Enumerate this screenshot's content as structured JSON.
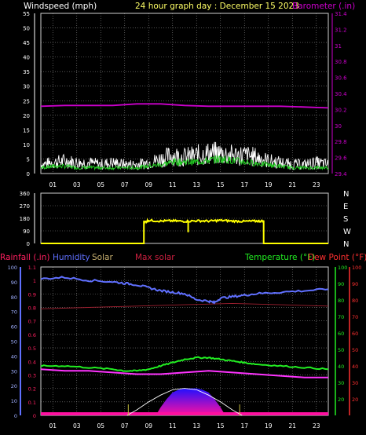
{
  "header": {
    "left_label": "Windspeed (mph)",
    "title": "24 hour graph day : December 15 2023",
    "right_label": "Barometer (.in)"
  },
  "footer_labels": {
    "rainfall": "Rainfall (.in)",
    "humidity": "Humidity",
    "solar": "Solar",
    "max_solar": "Max solar",
    "temperature": "Temperature (°F)",
    "dew_point": "Dew Point (°F)"
  },
  "colors": {
    "background": "#000000",
    "grid": "#8a8a8a",
    "text": "#ffffff",
    "wind": "#ffffff",
    "wind_avg": "#22cc22",
    "barometer": "#cc00cc",
    "direction": "#ffff00",
    "rain": "#ff2060",
    "humidity": "#6070ff",
    "solar": "#c8b070",
    "max_solar": "#cc2040",
    "temperature": "#22ee22",
    "dew_point": "#ff3030"
  },
  "chart_data": [
    {
      "type": "line",
      "name": "wind-barometer",
      "x_ticks": [
        "01",
        "03",
        "05",
        "07",
        "09",
        "11",
        "13",
        "15",
        "17",
        "19",
        "21",
        "23"
      ],
      "ylim_left": [
        0,
        55
      ],
      "y_ticks_left": [
        "0",
        "5",
        "10",
        "15",
        "20",
        "25",
        "30",
        "35",
        "40",
        "45",
        "50",
        "55"
      ],
      "ylim_right": [
        29.4,
        31.4
      ],
      "y_ticks_right": [
        "29.4",
        "29.6",
        "29.8",
        "30",
        "30.2",
        "30.4",
        "30.6",
        "30.8",
        "31",
        "31.2",
        "31.4"
      ],
      "grid": true,
      "series": [
        {
          "key": "barometer",
          "hours": [
            0,
            2,
            4,
            6,
            8,
            10,
            12,
            14,
            16,
            18,
            20,
            22,
            24
          ],
          "values": [
            30.24,
            30.25,
            30.25,
            30.25,
            30.27,
            30.27,
            30.25,
            30.24,
            30.24,
            30.24,
            30.24,
            30.23,
            30.22
          ]
        },
        {
          "key": "wind_gust",
          "hours": [
            0,
            1,
            2,
            3,
            4,
            5,
            6,
            7,
            8,
            9,
            10,
            11,
            12,
            13,
            14,
            15,
            16,
            17,
            18,
            19,
            20,
            21,
            22,
            23,
            24
          ],
          "values": [
            5,
            6,
            7,
            6,
            6,
            5,
            6,
            5,
            5,
            6,
            8,
            10,
            9,
            10,
            11,
            11,
            10,
            10,
            9,
            7,
            6,
            5,
            5,
            6,
            5
          ]
        },
        {
          "key": "wind_avg",
          "hours": [
            0,
            1,
            2,
            3,
            4,
            5,
            6,
            7,
            8,
            9,
            10,
            11,
            12,
            13,
            14,
            15,
            16,
            17,
            18,
            19,
            20,
            21,
            22,
            23,
            24
          ],
          "values": [
            2,
            2.5,
            2.5,
            2,
            2,
            2,
            2,
            2,
            2,
            2.5,
            3,
            4,
            4,
            4,
            4.5,
            5,
            4.5,
            4,
            3.5,
            3,
            2.5,
            2,
            2,
            2,
            2
          ]
        }
      ]
    },
    {
      "type": "line",
      "name": "wind-direction",
      "x_ticks": [
        "01",
        "03",
        "05",
        "07",
        "09",
        "11",
        "13",
        "15",
        "17",
        "19",
        "21",
        "23"
      ],
      "ylim": [
        0,
        360
      ],
      "y_ticks": [
        "0",
        "90",
        "180",
        "270",
        "360"
      ],
      "compass": [
        "N",
        "W",
        "S",
        "E",
        "N"
      ],
      "series": [
        {
          "key": "direction",
          "hours": [
            0,
            8.6,
            8.6,
            9,
            10,
            11,
            12,
            13,
            14,
            15,
            16,
            17,
            18,
            18.6,
            18.6,
            24
          ],
          "values": [
            0,
            0,
            150,
            165,
            160,
            162,
            158,
            162,
            160,
            165,
            160,
            158,
            160,
            160,
            0,
            0
          ]
        }
      ]
    },
    {
      "type": "line",
      "name": "temperature-humidity-rain-solar",
      "x_ticks": [
        "01",
        "03",
        "05",
        "07",
        "09",
        "11",
        "13",
        "15",
        "17",
        "19",
        "21",
        "23"
      ],
      "ylim_humidity": [
        0,
        100
      ],
      "y_ticks_humidity": [
        "0",
        "10",
        "20",
        "30",
        "40",
        "50",
        "60",
        "70",
        "80",
        "90",
        "100"
      ],
      "ylim_rain": [
        0,
        1.1
      ],
      "y_ticks_rain": [
        "0",
        "0.1",
        "0.2",
        "0.3",
        "0.4",
        "0.5",
        "0.6",
        "0.7",
        "0.8",
        "0.9",
        "1",
        "1.1"
      ],
      "ylim_temp": [
        10,
        100
      ],
      "y_ticks_temp": [
        "20",
        "30",
        "40",
        "50",
        "60",
        "70",
        "80",
        "90",
        "100"
      ],
      "y_ticks_dew": [
        "20",
        "30",
        "40",
        "50",
        "60",
        "70",
        "80",
        "90",
        "100"
      ],
      "series": [
        {
          "key": "humidity",
          "hours": [
            0,
            2,
            4,
            6,
            7,
            8,
            9,
            10,
            11,
            12,
            13,
            14,
            14.5,
            15,
            16,
            17,
            18,
            20,
            22,
            24
          ],
          "values": [
            92,
            93,
            91,
            90,
            89,
            88,
            86,
            84,
            83,
            82,
            78,
            77,
            76,
            79,
            80,
            81,
            82,
            83,
            84,
            85
          ]
        },
        {
          "key": "temperature",
          "hours": [
            0,
            2,
            4,
            6,
            7,
            8,
            9,
            10,
            11,
            12,
            13,
            14,
            15,
            16,
            17,
            18,
            20,
            22,
            24
          ],
          "values": [
            40,
            40,
            39,
            38,
            37,
            37,
            38,
            40,
            42,
            44,
            45,
            45,
            44,
            43,
            42,
            41,
            40,
            39,
            38
          ]
        },
        {
          "key": "dew_point",
          "hours": [
            0,
            2,
            4,
            6,
            8,
            10,
            12,
            14,
            16,
            18,
            20,
            22,
            24
          ],
          "values": [
            38,
            37,
            37,
            36,
            35,
            35,
            36,
            37,
            36,
            35,
            34,
            33,
            33
          ]
        },
        {
          "key": "rain_trace",
          "hours": [
            0,
            4,
            8,
            12,
            16,
            20,
            24
          ],
          "values": [
            0.79,
            0.8,
            0.81,
            0.82,
            0.83,
            0.82,
            0.81
          ]
        },
        {
          "key": "solar",
          "hours": [
            9.6,
            10,
            10.5,
            11,
            11.5,
            12,
            12.5,
            13,
            13.5,
            14,
            14.5,
            15,
            15.4
          ],
          "values": [
            0,
            0.06,
            0.12,
            0.17,
            0.19,
            0.2,
            0.2,
            0.2,
            0.19,
            0.17,
            0.12,
            0.06,
            0
          ]
        },
        {
          "key": "max_solar",
          "hours": [
            7.2,
            8,
            9,
            10,
            11,
            12,
            13,
            14,
            15,
            16,
            16.8
          ],
          "values": [
            0,
            0.04,
            0.1,
            0.15,
            0.19,
            0.2,
            0.19,
            0.15,
            0.1,
            0.04,
            0
          ]
        }
      ]
    }
  ]
}
